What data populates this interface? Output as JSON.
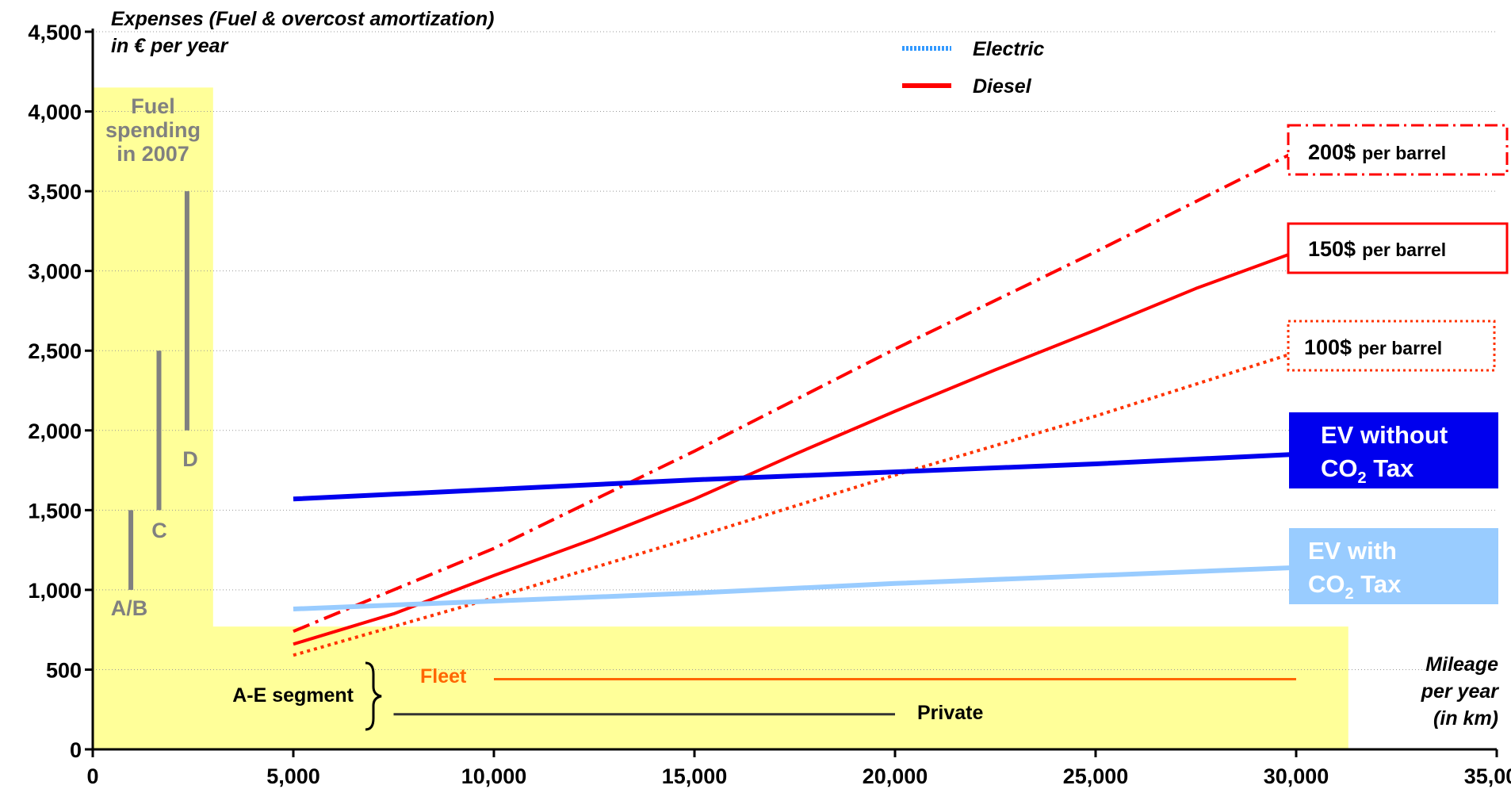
{
  "chart_data": {
    "type": "line",
    "ylabel_line1": "Expenses (Fuel & overcost amortization)",
    "ylabel_line2": "in € per year",
    "xlabel_line1": "Mileage",
    "xlabel_line2": "per year",
    "xlabel_line3": "(in km)",
    "xlim": [
      0,
      35000
    ],
    "ylim": [
      0,
      4500
    ],
    "x_ticks": [
      0,
      5000,
      10000,
      15000,
      20000,
      25000,
      30000,
      35000
    ],
    "x_tick_labels": [
      "0",
      "5,000",
      "10,000",
      "15,000",
      "20,000",
      "25,000",
      "30,000",
      "35,000"
    ],
    "y_ticks": [
      0,
      500,
      1000,
      1500,
      2000,
      2500,
      3000,
      3500,
      4000,
      4500
    ],
    "y_tick_labels": [
      "0",
      "500",
      "1,000",
      "1,500",
      "2,000",
      "2,500",
      "3,000",
      "3,500",
      "4,000",
      "4,500"
    ],
    "grid": "horizontal dotted",
    "legend": {
      "placement": "top-center",
      "items": [
        {
          "label": "Electric",
          "color": "#3399ff",
          "style": "dotted"
        },
        {
          "label": "Diesel",
          "color": "#ff0000",
          "style": "solid"
        }
      ]
    },
    "series": [
      {
        "id": "diesel-200",
        "label_value": "200$",
        "label_unit": "per barrel",
        "color": "#ff0000",
        "dash": "dashdot",
        "box_style": "dashdot",
        "x": [
          5000,
          10000,
          15000,
          20000,
          25000,
          30000
        ],
        "y": [
          740,
          1260,
          1870,
          2510,
          3120,
          3750
        ]
      },
      {
        "id": "diesel-150",
        "label_value": "150$",
        "label_unit": "per barrel",
        "color": "#ff0000",
        "dash": "solid",
        "box_style": "solid",
        "x": [
          5000,
          7500,
          10000,
          12500,
          15000,
          17500,
          20000,
          22500,
          25000,
          27500,
          30000
        ],
        "y": [
          660,
          850,
          1090,
          1320,
          1570,
          1850,
          2120,
          2380,
          2630,
          2890,
          3120
        ]
      },
      {
        "id": "diesel-100",
        "label_value": "100$",
        "label_unit": "per barrel",
        "color": "#ff3300",
        "dash": "dotted",
        "box_style": "dotted",
        "x": [
          5000,
          10000,
          15000,
          20000,
          25000,
          30000
        ],
        "y": [
          590,
          950,
          1330,
          1720,
          2090,
          2490
        ]
      },
      {
        "id": "ev-no-tax",
        "label_line1": "EV without",
        "label_line2": "CO",
        "label_sub": "2",
        "label_tail": " Tax",
        "color": "#0000ee",
        "box_color": "#0000ee",
        "dash": "solid",
        "x": [
          5000,
          10000,
          15000,
          20000,
          25000,
          30000
        ],
        "y": [
          1570,
          1630,
          1690,
          1740,
          1790,
          1850
        ]
      },
      {
        "id": "ev-tax",
        "label_line1": "EV with",
        "label_line2": "CO",
        "label_sub": "2",
        "label_tail": " Tax",
        "color": "#99ccff",
        "box_color": "#99ccff",
        "dash": "solid",
        "x": [
          5000,
          10000,
          15000,
          20000,
          25000,
          30000
        ],
        "y": [
          880,
          930,
          980,
          1040,
          1090,
          1140
        ]
      }
    ],
    "fuel_spending": {
      "label_lines": [
        "Fuel",
        "spending",
        "in 2007"
      ],
      "bars": [
        {
          "label": "A/B",
          "x": 950,
          "ymin": 1000,
          "ymax": 1500
        },
        {
          "label": "C",
          "x": 1650,
          "ymin": 1500,
          "ymax": 2500
        },
        {
          "label": "D",
          "x": 2350,
          "ymin": 2000,
          "ymax": 3500
        }
      ]
    },
    "segment": {
      "label": "A-E segment",
      "fleet": {
        "label": "Fleet",
        "x": [
          10000,
          30000
        ],
        "y": 440,
        "color": "#ff6600"
      },
      "private": {
        "label": "Private",
        "x": [
          7500,
          20000
        ],
        "y": 220,
        "color": "#333333"
      }
    }
  }
}
